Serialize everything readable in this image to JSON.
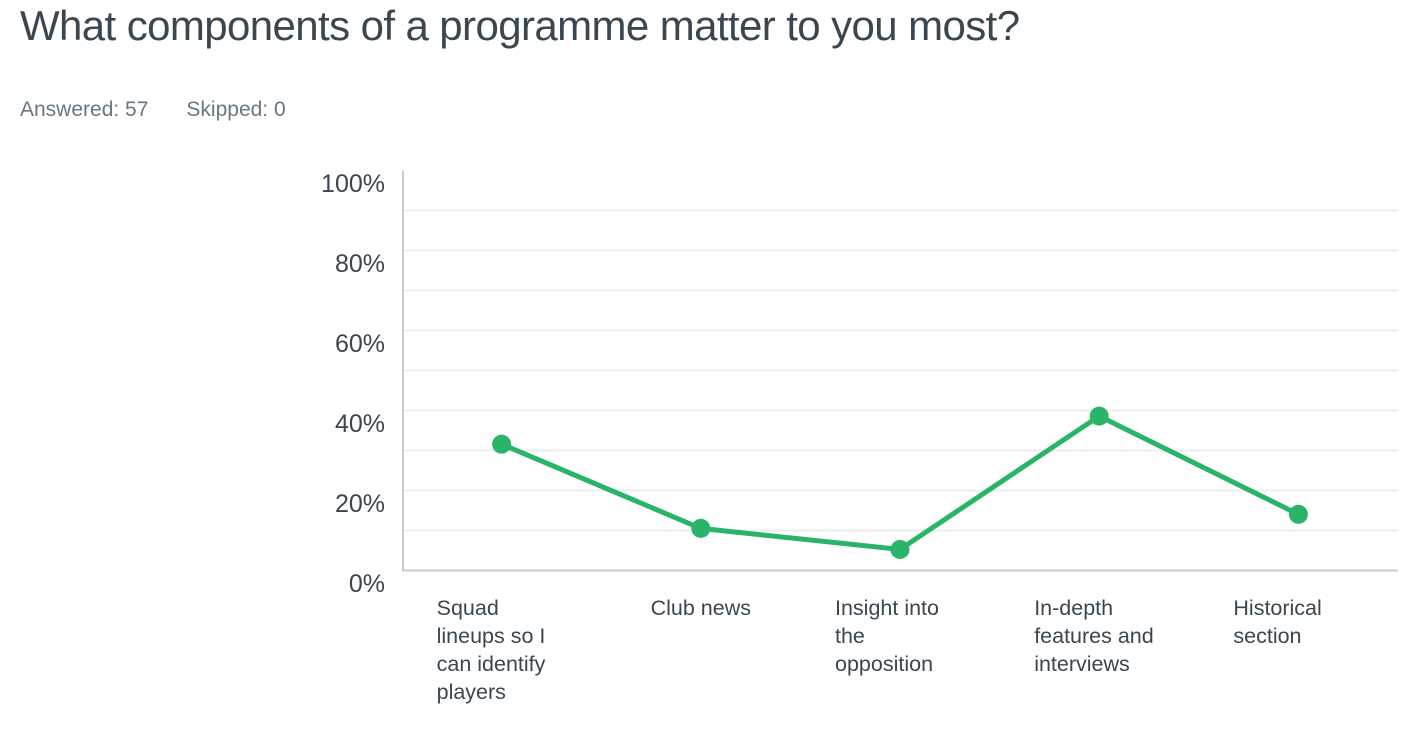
{
  "header": {
    "title": "What components of a programme matter to you most?",
    "answered": "Answered: 57",
    "skipped": "Skipped: 0"
  },
  "colors": {
    "accent_green": "#29b469",
    "text_dark": "#3b4750",
    "text_muted": "#6b7780",
    "gridline": "#eeeeee",
    "axis_line": "#cbcbcb"
  },
  "chart_data": {
    "type": "line",
    "title": "What components of a programme matter to you most?",
    "categories": [
      "Squad lineups so I can identify players",
      "Club news",
      "Insight into the opposition",
      "In-depth features and interviews",
      "Historical section"
    ],
    "values": [
      31.58,
      10.53,
      5.26,
      38.6,
      14.04
    ],
    "unit": "%",
    "xlabel": "",
    "ylabel": "",
    "ylim": [
      0,
      100
    ],
    "ytick_labels": [
      "100%",
      "80%",
      "60%",
      "40%",
      "20%",
      "0%"
    ],
    "yticks_labeled": [
      100,
      80,
      60,
      40,
      20,
      0
    ],
    "grid_step": 10,
    "grid": "horizontal",
    "legend": "none",
    "marker": "circle"
  }
}
